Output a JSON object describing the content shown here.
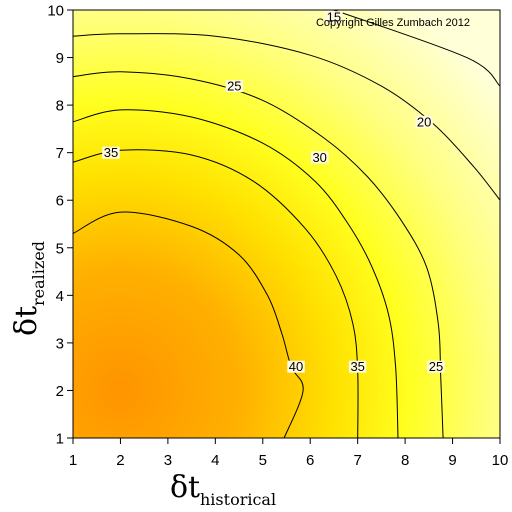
{
  "chart_data": {
    "type": "heatmap",
    "subtype": "filled-contour",
    "copyright": "Copyright Gilles Zumbach 2012",
    "xlabel": {
      "symbol": "δt",
      "subscript": "historical"
    },
    "ylabel": {
      "symbol": "δt",
      "subscript": "realized"
    },
    "xlim": [
      1,
      10
    ],
    "ylim": [
      1,
      10
    ],
    "xticks": [
      1,
      2,
      3,
      4,
      5,
      6,
      7,
      8,
      9,
      10
    ],
    "yticks": [
      1,
      2,
      3,
      4,
      5,
      6,
      7,
      8,
      9,
      10
    ],
    "grid": false,
    "colormap": {
      "low": "#ffffc0",
      "mid": "#ffff20",
      "high": "#ff9a00",
      "stops": [
        [
          10,
          "#ffffe0"
        ],
        [
          20,
          "#ffff80"
        ],
        [
          28,
          "#ffff10"
        ],
        [
          35,
          "#ffd000"
        ],
        [
          42,
          "#ff9a00"
        ]
      ]
    },
    "contours": [
      {
        "level": 15,
        "label": "15",
        "points": [
          [
            6.5,
            10
          ],
          [
            9.3,
            9.0
          ],
          [
            10,
            8.4
          ]
        ],
        "label_at": [
          6.5,
          9.85
        ]
      },
      {
        "level": 20,
        "label": "20",
        "points": [
          [
            1,
            9.45
          ],
          [
            2,
            9.5
          ],
          [
            4,
            9.45
          ],
          [
            6,
            9.05
          ],
          [
            7.5,
            8.4
          ],
          [
            8.6,
            7.6
          ],
          [
            9.45,
            6.7
          ],
          [
            10,
            6.0
          ]
        ],
        "label_at": [
          8.4,
          7.65
        ]
      },
      {
        "level": 25,
        "label": "25",
        "points": [
          [
            1,
            8.6
          ],
          [
            2,
            8.7
          ],
          [
            3.5,
            8.55
          ],
          [
            5,
            8.1
          ],
          [
            6.3,
            7.3
          ],
          [
            7.2,
            6.5
          ],
          [
            7.9,
            5.6
          ],
          [
            8.45,
            4.6
          ],
          [
            8.7,
            3.4
          ],
          [
            8.75,
            2.3
          ],
          [
            8.8,
            1
          ]
        ],
        "label_at": [
          [
            4.4,
            8.4
          ],
          [
            8.65,
            2.5
          ]
        ]
      },
      {
        "level": 30,
        "label": "30",
        "points": [
          [
            1,
            7.65
          ],
          [
            2,
            7.9
          ],
          [
            3.5,
            7.75
          ],
          [
            5,
            7.2
          ],
          [
            6.1,
            6.4
          ],
          [
            6.8,
            5.5
          ],
          [
            7.3,
            4.6
          ],
          [
            7.65,
            3.6
          ],
          [
            7.8,
            2.5
          ],
          [
            7.85,
            1
          ]
        ],
        "label_at": [
          6.2,
          6.9
        ]
      },
      {
        "level": 35,
        "label": "35",
        "points": [
          [
            1,
            6.8
          ],
          [
            2,
            7.05
          ],
          [
            3.5,
            6.95
          ],
          [
            4.8,
            6.4
          ],
          [
            5.9,
            5.4
          ],
          [
            6.55,
            4.4
          ],
          [
            6.9,
            3.4
          ],
          [
            7.0,
            2.4
          ],
          [
            7.0,
            1
          ]
        ],
        "label_at": [
          [
            1.8,
            7.0
          ],
          [
            7.0,
            2.5
          ]
        ]
      },
      {
        "level": 40,
        "label": "40",
        "points": [
          [
            1,
            5.3
          ],
          [
            2,
            5.75
          ],
          [
            3.5,
            5.45
          ],
          [
            4.5,
            4.85
          ],
          [
            5.1,
            4.0
          ],
          [
            5.4,
            3.2
          ],
          [
            5.6,
            2.5
          ],
          [
            5.85,
            2.0
          ],
          [
            5.45,
            1
          ]
        ],
        "label_at": [
          5.7,
          2.5
        ]
      }
    ]
  }
}
